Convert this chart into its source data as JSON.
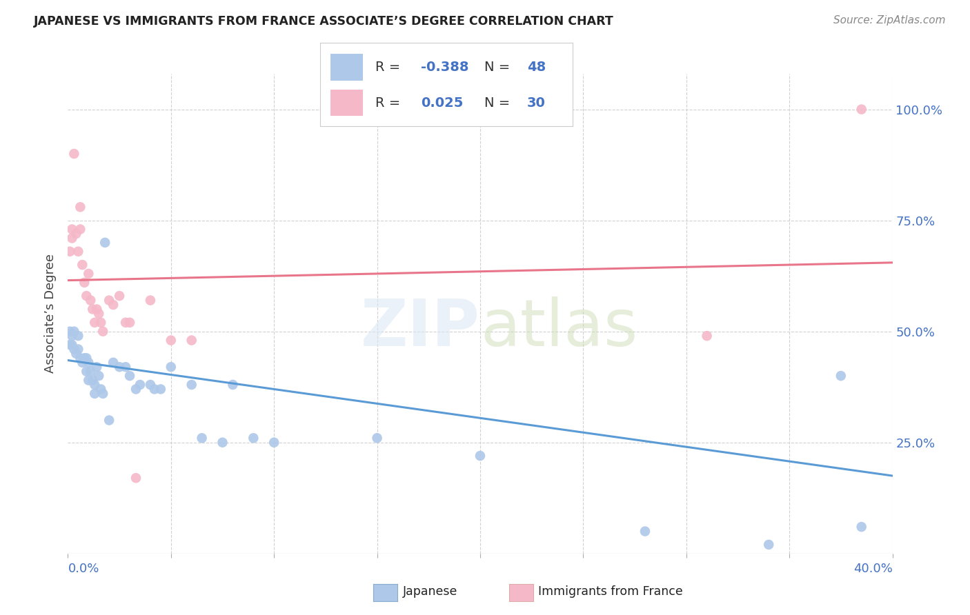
{
  "title": "JAPANESE VS IMMIGRANTS FROM FRANCE ASSOCIATE’S DEGREE CORRELATION CHART",
  "source": "Source: ZipAtlas.com",
  "ylabel": "Associate’s Degree",
  "watermark": "ZIPatlas",
  "xlim": [
    0.0,
    0.4
  ],
  "ylim": [
    0.0,
    1.08
  ],
  "color_japanese": "#adc8e8",
  "color_france": "#f5b8c8",
  "color_line_japanese": "#5b9bd5",
  "color_line_france": "#e8758a",
  "color_text_blue": "#4472c4",
  "background": "#ffffff",
  "japanese_x": [
    0.001,
    0.001,
    0.002,
    0.002,
    0.003,
    0.003,
    0.004,
    0.005,
    0.005,
    0.006,
    0.007,
    0.008,
    0.009,
    0.009,
    0.01,
    0.01,
    0.011,
    0.012,
    0.013,
    0.013,
    0.014,
    0.015,
    0.016,
    0.017,
    0.018,
    0.02,
    0.022,
    0.025,
    0.028,
    0.03,
    0.033,
    0.035,
    0.04,
    0.042,
    0.045,
    0.05,
    0.06,
    0.065,
    0.075,
    0.08,
    0.09,
    0.1,
    0.15,
    0.2,
    0.28,
    0.34,
    0.375,
    0.385
  ],
  "japanese_y": [
    0.47,
    0.5,
    0.47,
    0.49,
    0.46,
    0.5,
    0.45,
    0.46,
    0.49,
    0.44,
    0.43,
    0.44,
    0.41,
    0.44,
    0.39,
    0.43,
    0.41,
    0.39,
    0.38,
    0.36,
    0.42,
    0.4,
    0.37,
    0.36,
    0.7,
    0.3,
    0.43,
    0.42,
    0.42,
    0.4,
    0.37,
    0.38,
    0.38,
    0.37,
    0.37,
    0.42,
    0.38,
    0.26,
    0.25,
    0.38,
    0.26,
    0.25,
    0.26,
    0.22,
    0.05,
    0.02,
    0.4,
    0.06
  ],
  "france_x": [
    0.001,
    0.002,
    0.002,
    0.003,
    0.004,
    0.005,
    0.006,
    0.006,
    0.007,
    0.008,
    0.009,
    0.01,
    0.011,
    0.012,
    0.013,
    0.014,
    0.015,
    0.016,
    0.017,
    0.02,
    0.022,
    0.025,
    0.028,
    0.03,
    0.033,
    0.04,
    0.05,
    0.06,
    0.31,
    0.385
  ],
  "france_y": [
    0.68,
    0.71,
    0.73,
    0.9,
    0.72,
    0.68,
    0.73,
    0.78,
    0.65,
    0.61,
    0.58,
    0.63,
    0.57,
    0.55,
    0.52,
    0.55,
    0.54,
    0.52,
    0.5,
    0.57,
    0.56,
    0.58,
    0.52,
    0.52,
    0.17,
    0.57,
    0.48,
    0.48,
    0.49,
    1.0
  ],
  "line_j_x0": 0.0,
  "line_j_y0": 0.435,
  "line_j_x1": 0.4,
  "line_j_y1": 0.175,
  "line_f_x0": 0.0,
  "line_f_y0": 0.615,
  "line_f_x1": 0.4,
  "line_f_y1": 0.655
}
